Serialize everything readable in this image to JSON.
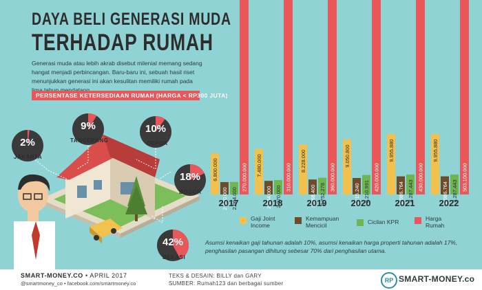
{
  "header": {
    "title_line1": "DAYA BELI GENERASI MUDA",
    "title_line2": "TERHADAP RUMAH",
    "intro": "Generasi muda atau lebih akrab disebut milenial memang sedang hangat menjadi perbincangan. Baru-baru ini, sebuah hasil riset menunjukkan generasi ini akan kesulitan memiliki rumah pada lima tahun mendatang."
  },
  "availability": {
    "banner": "PERSENTASE KETERSEDIAAN RUMAH (HARGA < RP300 JUTA)",
    "cities": [
      {
        "name": "JAKARTA",
        "value": "2%",
        "percent": 2
      },
      {
        "name": "TANGERANG",
        "value": "9%",
        "percent": 9
      },
      {
        "name": "DEPOK",
        "value": "10%",
        "percent": 10
      },
      {
        "name": "BOGOR",
        "value": "18%",
        "percent": 18
      },
      {
        "name": "BEKASI",
        "value": "42%",
        "percent": 42
      }
    ]
  },
  "chart_data": {
    "type": "bar",
    "categories": [
      "2017",
      "2018",
      "2019",
      "2020",
      "2021",
      "2022"
    ],
    "series": [
      {
        "name": "Gaji Joint Income",
        "color": "#f2c14e",
        "values": [
          6800000,
          7480000,
          8228000,
          9050800,
          9955880,
          9955880
        ],
        "labels": [
          "6.800.000",
          "7.480.000",
          "8.228.000",
          "9.050.800",
          "9.955.880",
          "9.955.880"
        ]
      },
      {
        "name": "Kemampuan Mencicil",
        "color": "#6e4b2a",
        "values": [
          2040000,
          2244000,
          2468400,
          2715240,
          2986764,
          2986764
        ],
        "labels": [
          "2.040.000",
          "2.244.000",
          "2.468.400",
          "2.715.240",
          "2.986.764",
          "2.986.764"
        ]
      },
      {
        "name": "Cicilan KPR",
        "color": "#6fb552",
        "values": [
          2064000,
          2370000,
          2752278,
          3210991,
          3287443,
          3287443
        ],
        "labels": [
          "2.064.000",
          "2.370.000",
          "2.752.278",
          "3.210.991",
          "3.287.443",
          "3.287.443"
        ]
      },
      {
        "name": "Harga Rumah",
        "color": "#e9575a",
        "values": [
          270000000,
          310000000,
          360000000,
          420000000,
          430000000,
          503100000
        ],
        "labels": [
          "270.000.000",
          "310.000.000",
          "360.000.000",
          "420.000.000",
          "430.000.000",
          "503.100.000"
        ]
      }
    ]
  },
  "legend": [
    {
      "label": "Gaji Joint Income",
      "color": "#f2c14e"
    },
    {
      "label": "Kemampuan Mencicil",
      "color": "#6e4b2a"
    },
    {
      "label": "Cicilan KPR",
      "color": "#6fb552"
    },
    {
      "label": "Harga Rumah",
      "color": "#e9575a"
    }
  ],
  "note": "Asumsi kenaikan gaji tahunan adalah 10%, asumsi kenaikan harga properti tahunan adalah 17%, penghasilan pasangan dihitung sebesar 70% dari penghasilan utama.",
  "footer": {
    "brand": "SMART-MONEY.CO",
    "date": "• APRIL 2017",
    "social": "@smartmoney_co • facebook.com/smartmoney.co",
    "credit": "TEKS & DESAIN: BILLY dan GARY",
    "source": "SUMBER: Rumah123 dan berbagai sumber",
    "logo_initials": "RP",
    "logo_text": "SMART-MONEY.co"
  },
  "colors": {
    "background": "#8fd3d5",
    "accent_red": "#e9575a",
    "pie_dark": "#3a3a3a"
  }
}
